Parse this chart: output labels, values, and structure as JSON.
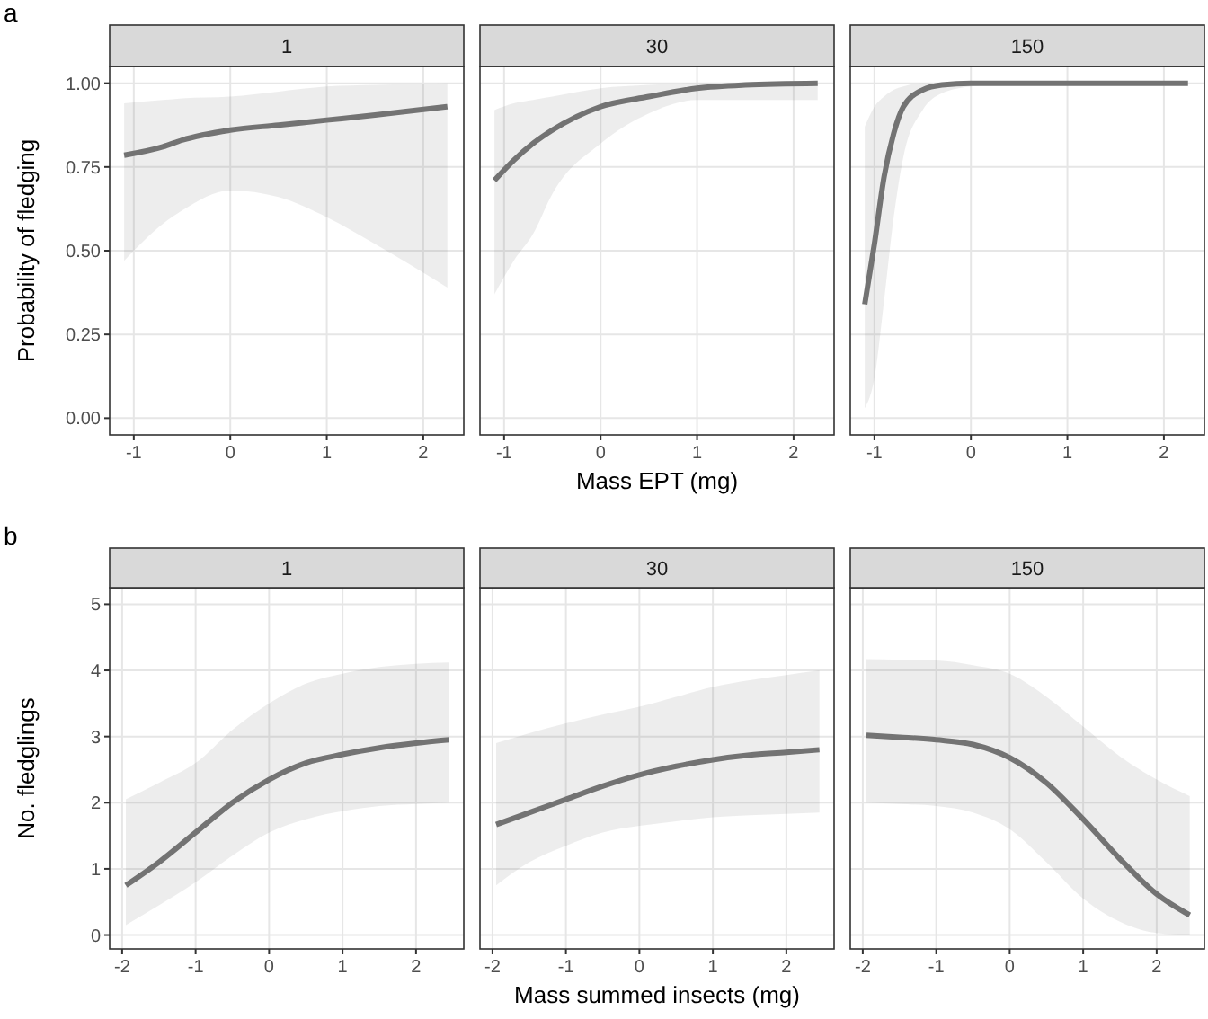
{
  "chart_data": [
    {
      "type": "line",
      "title": "1",
      "ylabel": "Probability of fledging",
      "annotations": [
        "a"
      ],
      "xlim": [
        -1.25,
        2.42
      ],
      "xticks": [
        -1,
        0,
        1,
        2
      ],
      "ylim": [
        -0.05,
        1.05
      ],
      "yticks": [
        {
          "value": 0,
          "label": "0.00"
        },
        {
          "value": 0.25,
          "label": "0.25"
        },
        {
          "value": 0.5,
          "label": "0.50"
        },
        {
          "value": 0.75,
          "label": "0.75"
        },
        {
          "value": 1,
          "label": "1.00"
        }
      ],
      "grid": true,
      "series": [
        {
          "color": "#737373",
          "x": [
            -1.1,
            -0.7,
            -0.5,
            0,
            0.5,
            1,
            1.5,
            2.25
          ],
          "values": [
            0.785,
            0.81,
            0.83,
            0.86,
            0.875,
            0.89,
            0.905,
            0.93
          ],
          "lower": [
            0.47,
            0.58,
            0.62,
            0.68,
            0.66,
            0.6,
            0.52,
            0.39
          ],
          "upper": [
            0.94,
            0.95,
            0.955,
            0.96,
            0.975,
            0.99,
            0.995,
            1.0
          ]
        }
      ]
    },
    {
      "type": "line",
      "title": "30",
      "xlabel": "Mass EPT (mg)",
      "tick_labels": "x",
      "xlim": [
        -1.25,
        2.42
      ],
      "xticks": [
        -1,
        0,
        1,
        2
      ],
      "ylim": [
        -0.05,
        1.05
      ],
      "yticks": [
        0,
        0.25,
        0.5,
        0.75,
        1
      ],
      "grid": true,
      "series": [
        {
          "color": "#737373",
          "x": [
            -1.1,
            -0.9,
            -0.7,
            -0.5,
            0,
            0.5,
            1,
            1.5,
            2.25
          ],
          "values": [
            0.71,
            0.77,
            0.82,
            0.86,
            0.93,
            0.96,
            0.985,
            0.995,
            1.0
          ],
          "lower": [
            0.37,
            0.47,
            0.55,
            0.67,
            0.82,
            0.91,
            0.95,
            0.95,
            0.95
          ],
          "upper": [
            0.92,
            0.94,
            0.95,
            0.96,
            0.985,
            0.995,
            1.0,
            1.0,
            1.0
          ]
        }
      ]
    },
    {
      "type": "line",
      "title": "150",
      "tick_labels": "x",
      "xlim": [
        -1.25,
        2.42
      ],
      "xticks": [
        -1,
        0,
        1,
        2
      ],
      "ylim": [
        -0.05,
        1.05
      ],
      "yticks": [
        0,
        0.25,
        0.5,
        0.75,
        1
      ],
      "grid": true,
      "series": [
        {
          "color": "#737373",
          "x": [
            -1.1,
            -1.0,
            -0.9,
            -0.8,
            -0.7,
            -0.5,
            -0.3,
            0,
            0.5,
            2.25
          ],
          "values": [
            0.34,
            0.52,
            0.72,
            0.85,
            0.93,
            0.98,
            0.995,
            1.0,
            1.0,
            1.0
          ],
          "lower": [
            0.03,
            0.12,
            0.35,
            0.6,
            0.78,
            0.92,
            0.97,
            0.99,
            1.0,
            1.0
          ],
          "upper": [
            0.87,
            0.93,
            0.96,
            0.98,
            0.99,
            1.0,
            1.0,
            1.0,
            1.0,
            1.0
          ]
        }
      ]
    },
    {
      "type": "line",
      "title": "1",
      "ylabel": "No. fledglings",
      "annotations": [
        "b"
      ],
      "xlim": [
        -2.17,
        2.65
      ],
      "xticks": [
        -2,
        -1,
        0,
        1,
        2
      ],
      "ylim": [
        -0.21,
        5.25
      ],
      "yticks": [
        0,
        1,
        2,
        3,
        4,
        5
      ],
      "grid": true,
      "series": [
        {
          "color": "#737373",
          "x": [
            -1.95,
            -1.5,
            -1,
            -0.5,
            0,
            0.5,
            1,
            1.5,
            2,
            2.45
          ],
          "values": [
            0.75,
            1.1,
            1.55,
            2.0,
            2.35,
            2.6,
            2.73,
            2.83,
            2.9,
            2.95
          ],
          "lower": [
            0.15,
            0.45,
            0.8,
            1.2,
            1.55,
            1.75,
            1.87,
            1.95,
            1.98,
            2.0
          ],
          "upper": [
            2.05,
            2.3,
            2.6,
            3.1,
            3.5,
            3.8,
            3.95,
            4.05,
            4.1,
            4.12
          ]
        }
      ]
    },
    {
      "type": "line",
      "title": "30",
      "xlabel": "Mass summed insects (mg)",
      "tick_labels": "x",
      "xlim": [
        -2.17,
        2.65
      ],
      "xticks": [
        -2,
        -1,
        0,
        1,
        2
      ],
      "ylim": [
        -0.21,
        5.25
      ],
      "yticks": [
        0,
        1,
        2,
        3,
        4,
        5
      ],
      "grid": true,
      "series": [
        {
          "color": "#737373",
          "x": [
            -1.95,
            -1.5,
            -1,
            -0.5,
            0,
            0.5,
            1,
            1.5,
            2,
            2.45
          ],
          "values": [
            1.67,
            1.85,
            2.05,
            2.25,
            2.42,
            2.55,
            2.65,
            2.72,
            2.76,
            2.8
          ],
          "lower": [
            0.75,
            1.1,
            1.35,
            1.55,
            1.65,
            1.72,
            1.78,
            1.81,
            1.83,
            1.85
          ],
          "upper": [
            2.9,
            3.05,
            3.2,
            3.33,
            3.45,
            3.6,
            3.75,
            3.85,
            3.93,
            4.0
          ]
        }
      ]
    },
    {
      "type": "line",
      "title": "150",
      "tick_labels": "x",
      "xlim": [
        -2.17,
        2.65
      ],
      "xticks": [
        -2,
        -1,
        0,
        1,
        2
      ],
      "ylim": [
        -0.21,
        5.25
      ],
      "yticks": [
        0,
        1,
        2,
        3,
        4,
        5
      ],
      "grid": true,
      "series": [
        {
          "color": "#737373",
          "x": [
            -1.95,
            -1.5,
            -1,
            -0.5,
            0,
            0.5,
            1,
            1.5,
            2,
            2.45
          ],
          "values": [
            3.02,
            2.99,
            2.95,
            2.88,
            2.68,
            2.3,
            1.75,
            1.15,
            0.62,
            0.3
          ],
          "lower": [
            2.0,
            1.98,
            1.95,
            1.85,
            1.6,
            1.1,
            0.55,
            0.2,
            0.03,
            0.0
          ],
          "upper": [
            4.17,
            4.16,
            4.15,
            4.08,
            3.95,
            3.6,
            3.15,
            2.7,
            2.35,
            2.1
          ]
        }
      ]
    }
  ]
}
